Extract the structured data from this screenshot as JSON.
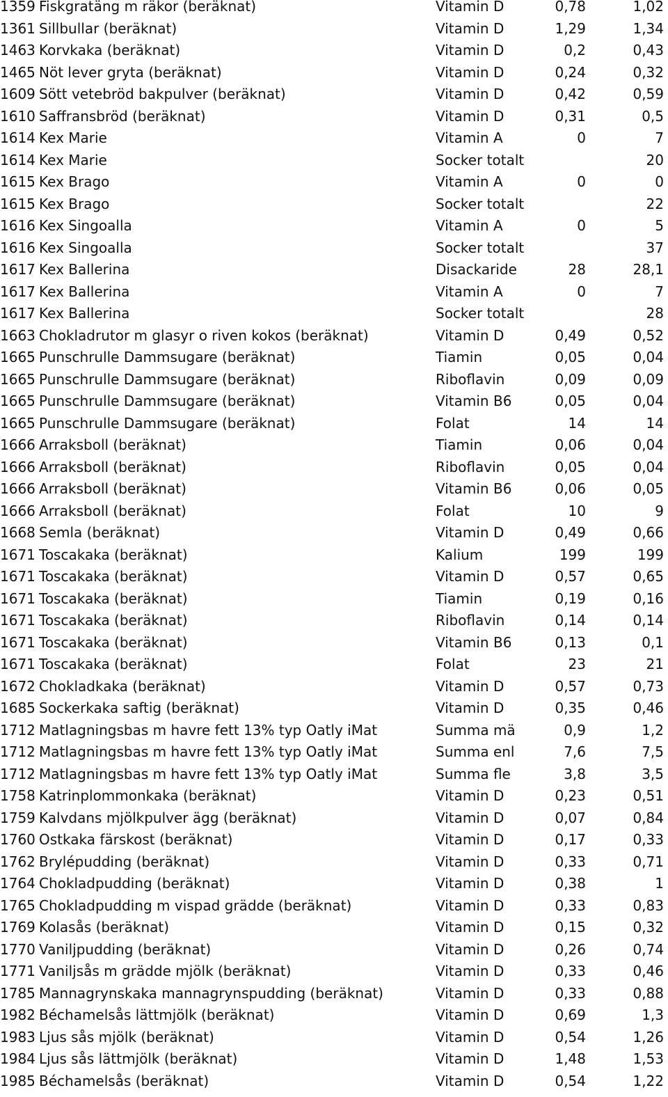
{
  "rows": [
    {
      "id": "1359",
      "name": "Fiskgratäng m räkor (beräknat)",
      "nutrient": "Vitamin D",
      "v1": "0,78",
      "v2": "1,02"
    },
    {
      "id": "1361",
      "name": "Sillbullar (beräknat)",
      "nutrient": "Vitamin D",
      "v1": "1,29",
      "v2": "1,34"
    },
    {
      "id": "1463",
      "name": "Korvkaka (beräknat)",
      "nutrient": "Vitamin D",
      "v1": "0,2",
      "v2": "0,43"
    },
    {
      "id": "1465",
      "name": "Nöt lever gryta (beräknat)",
      "nutrient": "Vitamin D",
      "v1": "0,24",
      "v2": "0,32"
    },
    {
      "id": "1609",
      "name": "Sött vetebröd bakpulver (beräknat)",
      "nutrient": "Vitamin D",
      "v1": "0,42",
      "v2": "0,59"
    },
    {
      "id": "1610",
      "name": "Saffransbröd (beräknat)",
      "nutrient": "Vitamin D",
      "v1": "0,31",
      "v2": "0,5"
    },
    {
      "id": "1614",
      "name": "Kex Marie",
      "nutrient": "Vitamin A",
      "v1": "0",
      "v2": "7"
    },
    {
      "id": "1614",
      "name": "Kex Marie",
      "nutrient": "Socker totalt",
      "v1": "",
      "v2": "20"
    },
    {
      "id": "1615",
      "name": "Kex Brago",
      "nutrient": "Vitamin A",
      "v1": "0",
      "v2": "0"
    },
    {
      "id": "1615",
      "name": "Kex Brago",
      "nutrient": "Socker totalt",
      "v1": "",
      "v2": "22"
    },
    {
      "id": "1616",
      "name": "Kex Singoalla",
      "nutrient": "Vitamin A",
      "v1": "0",
      "v2": "5"
    },
    {
      "id": "1616",
      "name": "Kex Singoalla",
      "nutrient": "Socker totalt",
      "v1": "",
      "v2": "37"
    },
    {
      "id": "1617",
      "name": "Kex Ballerina",
      "nutrient": "Disackaride",
      "v1": "28",
      "v2": "28,1"
    },
    {
      "id": "1617",
      "name": "Kex Ballerina",
      "nutrient": "Vitamin A",
      "v1": "0",
      "v2": "7"
    },
    {
      "id": "1617",
      "name": "Kex Ballerina",
      "nutrient": "Socker totalt",
      "v1": "",
      "v2": "28"
    },
    {
      "id": "1663",
      "name": "Chokladrutor m glasyr o riven kokos (beräknat)",
      "nutrient": "Vitamin D",
      "v1": "0,49",
      "v2": "0,52"
    },
    {
      "id": "1665",
      "name": "Punschrulle Dammsugare (beräknat)",
      "nutrient": "Tiamin",
      "v1": "0,05",
      "v2": "0,04"
    },
    {
      "id": "1665",
      "name": "Punschrulle Dammsugare (beräknat)",
      "nutrient": "Riboflavin",
      "v1": "0,09",
      "v2": "0,09"
    },
    {
      "id": "1665",
      "name": "Punschrulle Dammsugare (beräknat)",
      "nutrient": "Vitamin B6",
      "v1": "0,05",
      "v2": "0,04"
    },
    {
      "id": "1665",
      "name": "Punschrulle Dammsugare (beräknat)",
      "nutrient": "Folat",
      "v1": "14",
      "v2": "14"
    },
    {
      "id": "1666",
      "name": "Arraksboll (beräknat)",
      "nutrient": "Tiamin",
      "v1": "0,06",
      "v2": "0,04"
    },
    {
      "id": "1666",
      "name": "Arraksboll (beräknat)",
      "nutrient": "Riboflavin",
      "v1": "0,05",
      "v2": "0,04"
    },
    {
      "id": "1666",
      "name": "Arraksboll (beräknat)",
      "nutrient": "Vitamin B6",
      "v1": "0,06",
      "v2": "0,05"
    },
    {
      "id": "1666",
      "name": "Arraksboll (beräknat)",
      "nutrient": "Folat",
      "v1": "10",
      "v2": "9"
    },
    {
      "id": "1668",
      "name": "Semla (beräknat)",
      "nutrient": "Vitamin D",
      "v1": "0,49",
      "v2": "0,66"
    },
    {
      "id": "1671",
      "name": "Toscakaka (beräknat)",
      "nutrient": "Kalium",
      "v1": "199",
      "v2": "199"
    },
    {
      "id": "1671",
      "name": "Toscakaka (beräknat)",
      "nutrient": "Vitamin D",
      "v1": "0,57",
      "v2": "0,65"
    },
    {
      "id": "1671",
      "name": "Toscakaka (beräknat)",
      "nutrient": "Tiamin",
      "v1": "0,19",
      "v2": "0,16"
    },
    {
      "id": "1671",
      "name": "Toscakaka (beräknat)",
      "nutrient": "Riboflavin",
      "v1": "0,14",
      "v2": "0,14"
    },
    {
      "id": "1671",
      "name": "Toscakaka (beräknat)",
      "nutrient": "Vitamin B6",
      "v1": "0,13",
      "v2": "0,1"
    },
    {
      "id": "1671",
      "name": "Toscakaka (beräknat)",
      "nutrient": "Folat",
      "v1": "23",
      "v2": "21"
    },
    {
      "id": "1672",
      "name": "Chokladkaka (beräknat)",
      "nutrient": "Vitamin D",
      "v1": "0,57",
      "v2": "0,73"
    },
    {
      "id": "1685",
      "name": "Sockerkaka saftig (beräknat)",
      "nutrient": "Vitamin D",
      "v1": "0,35",
      "v2": "0,46"
    },
    {
      "id": "1712",
      "name": "Matlagningsbas m havre fett 13% typ Oatly iMat",
      "nutrient": "Summa mä",
      "v1": "0,9",
      "v2": "1,2"
    },
    {
      "id": "1712",
      "name": "Matlagningsbas m havre fett 13% typ Oatly iMat",
      "nutrient": "Summa enl",
      "v1": "7,6",
      "v2": "7,5"
    },
    {
      "id": "1712",
      "name": "Matlagningsbas m havre fett 13% typ Oatly iMat",
      "nutrient": "Summa fle",
      "v1": "3,8",
      "v2": "3,5"
    },
    {
      "id": "1758",
      "name": "Katrinplommonkaka (beräknat)",
      "nutrient": "Vitamin D",
      "v1": "0,23",
      "v2": "0,51"
    },
    {
      "id": "1759",
      "name": "Kalvdans mjölkpulver ägg (beräknat)",
      "nutrient": "Vitamin D",
      "v1": "0,07",
      "v2": "0,84"
    },
    {
      "id": "1760",
      "name": "Ostkaka färskost (beräknat)",
      "nutrient": "Vitamin D",
      "v1": "0,17",
      "v2": "0,33"
    },
    {
      "id": "1762",
      "name": "Brylépudding (beräknat)",
      "nutrient": "Vitamin D",
      "v1": "0,33",
      "v2": "0,71"
    },
    {
      "id": "1764",
      "name": "Chokladpudding (beräknat)",
      "nutrient": "Vitamin D",
      "v1": "0,38",
      "v2": "1"
    },
    {
      "id": "1765",
      "name": "Chokladpudding m vispad grädde (beräknat)",
      "nutrient": "Vitamin D",
      "v1": "0,33",
      "v2": "0,83"
    },
    {
      "id": "1769",
      "name": "Kolasås (beräknat)",
      "nutrient": "Vitamin D",
      "v1": "0,15",
      "v2": "0,32"
    },
    {
      "id": "1770",
      "name": "Vaniljpudding (beräknat)",
      "nutrient": "Vitamin D",
      "v1": "0,26",
      "v2": "0,74"
    },
    {
      "id": "1771",
      "name": "Vaniljsås m grädde mjölk (beräknat)",
      "nutrient": "Vitamin D",
      "v1": "0,33",
      "v2": "0,46"
    },
    {
      "id": "1785",
      "name": "Mannagrynskaka mannagrynspudding (beräknat)",
      "nutrient": "Vitamin D",
      "v1": "0,33",
      "v2": "0,88"
    },
    {
      "id": "1982",
      "name": "Béchamelsås lättmjölk (beräknat)",
      "nutrient": "Vitamin D",
      "v1": "0,69",
      "v2": "1,3"
    },
    {
      "id": "1983",
      "name": "Ljus sås mjölk (beräknat)",
      "nutrient": "Vitamin D",
      "v1": "0,54",
      "v2": "1,26"
    },
    {
      "id": "1984",
      "name": "Ljus sås lättmjölk (beräknat)",
      "nutrient": "Vitamin D",
      "v1": "1,48",
      "v2": "1,53"
    },
    {
      "id": "1985",
      "name": "Béchamelsås (beräknat)",
      "nutrient": "Vitamin D",
      "v1": "0,54",
      "v2": "1,22"
    }
  ]
}
